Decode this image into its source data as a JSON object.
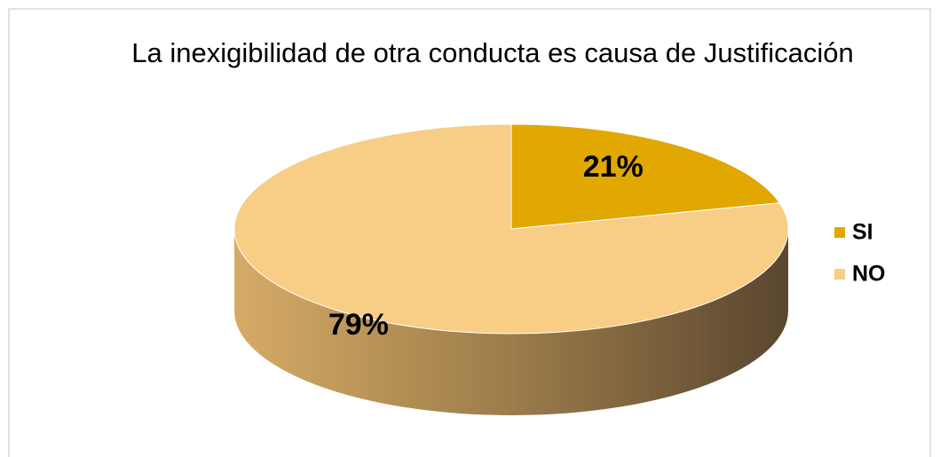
{
  "chart_data": {
    "type": "pie",
    "title": "La inexigibilidad de otra conducta es causa de Justificación",
    "categories": [
      "SI",
      "NO"
    ],
    "values": [
      21,
      79
    ],
    "value_labels": [
      "21%",
      "79%"
    ],
    "colors": [
      "#e0a800",
      "#f8cd86"
    ],
    "legend": "right"
  }
}
